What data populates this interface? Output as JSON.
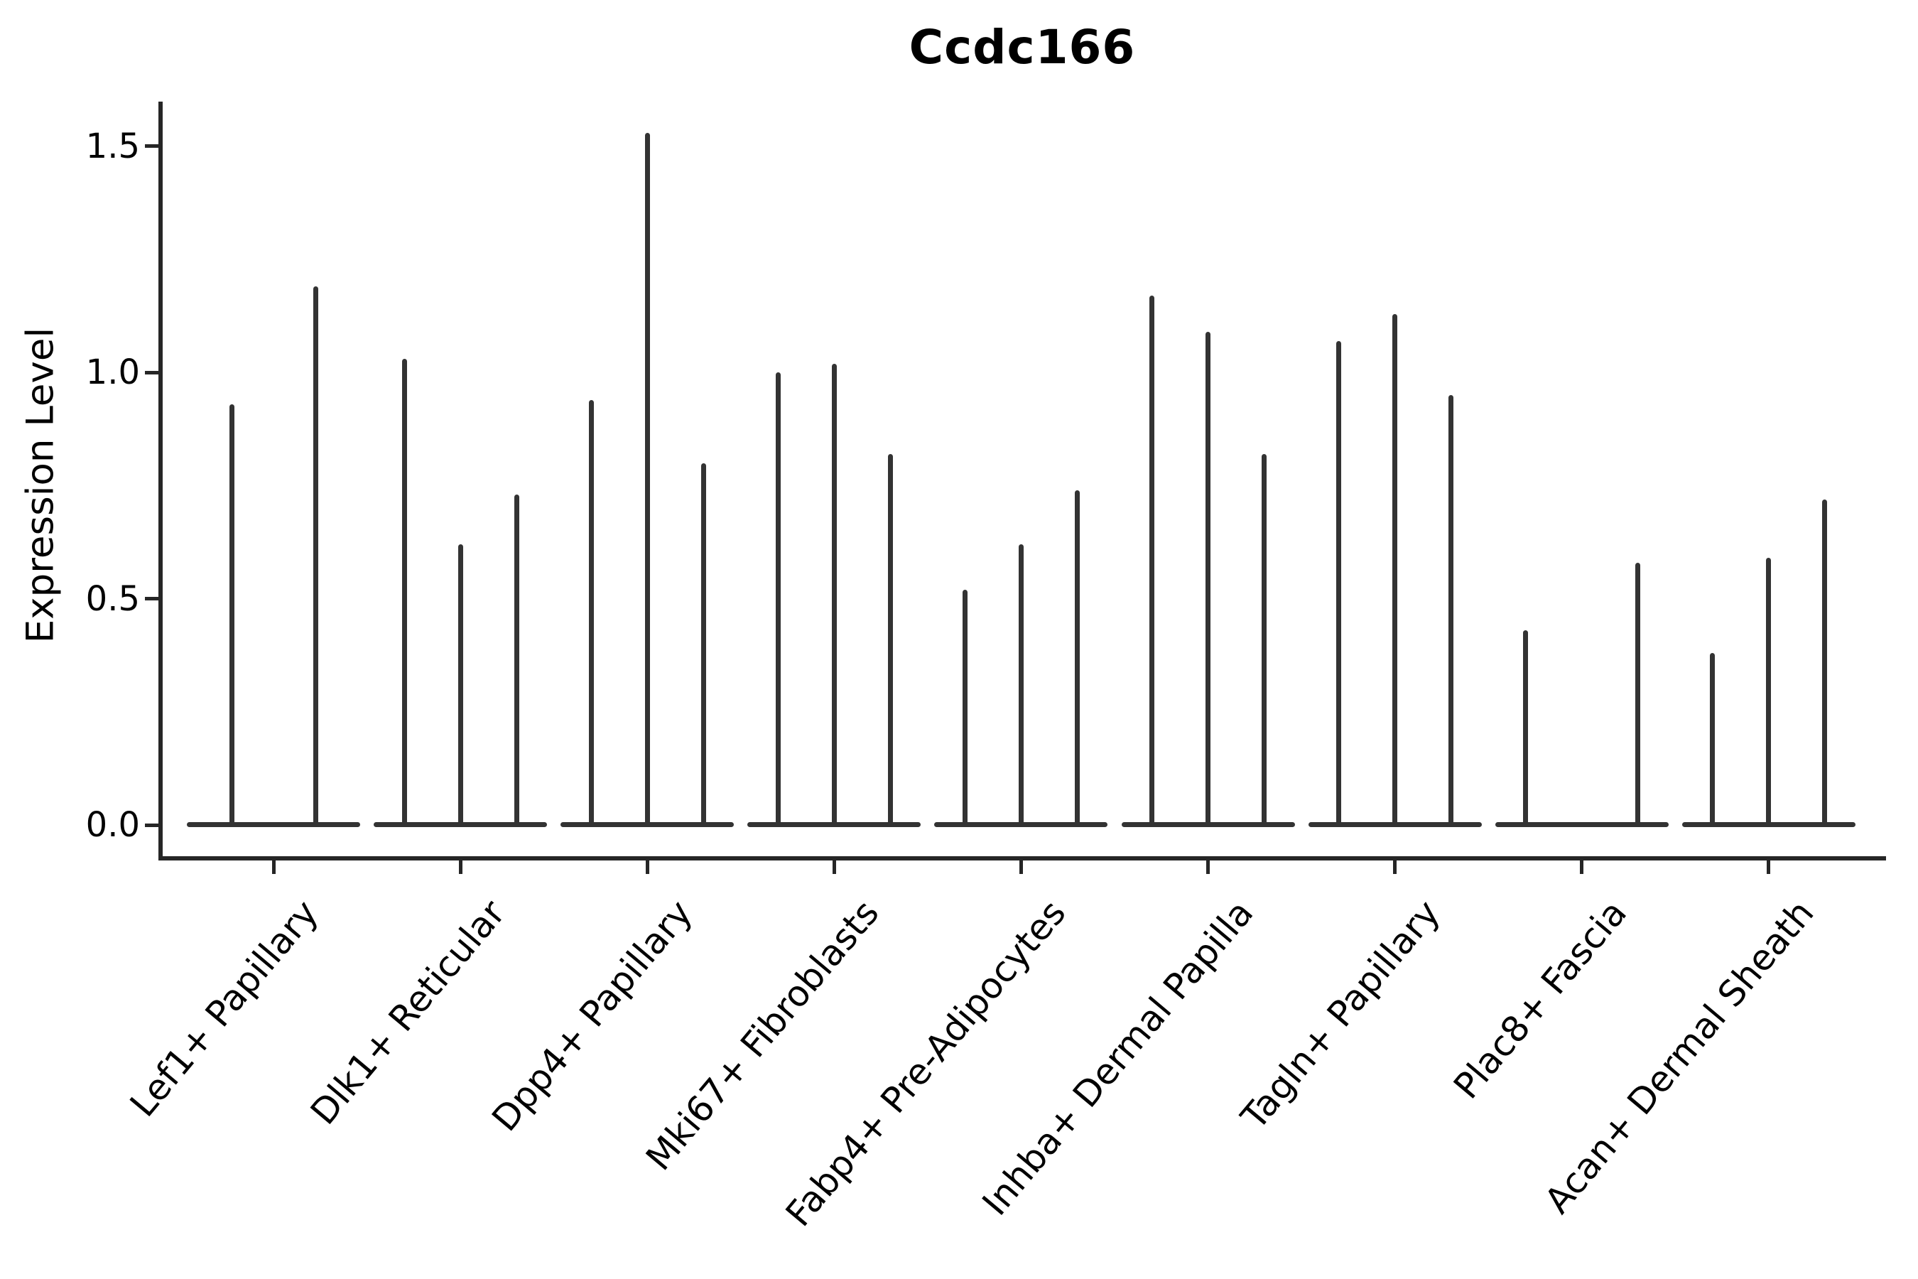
{
  "figure": {
    "background": "#ffffff",
    "ink_color": "#333333",
    "axis_color": "#262626",
    "text_color": "#000000"
  },
  "chart_data": {
    "type": "violin",
    "title": "Ccdc166",
    "xlabel": "",
    "ylabel": "Expression Level",
    "grid": false,
    "legend_position": "none",
    "ylim": [
      -0.07,
      1.6
    ],
    "yticks": {
      "values": [
        0.0,
        0.5,
        1.0,
        1.5
      ],
      "labels": [
        "0.0",
        "0.5",
        "1.0",
        "1.5"
      ]
    },
    "categories": [
      {
        "label": "Lef1+ Papillary",
        "violins": [
          {
            "offset": -59,
            "max": 0.93
          },
          {
            "offset": 59,
            "max": 1.19
          }
        ]
      },
      {
        "label": "Dlk1+ Reticular",
        "violins": [
          {
            "offset": -79,
            "max": 1.03
          },
          {
            "offset": 0,
            "max": 0.62
          },
          {
            "offset": 79,
            "max": 0.73
          }
        ]
      },
      {
        "label": "Dpp4+ Papillary",
        "violins": [
          {
            "offset": -79,
            "max": 0.94
          },
          {
            "offset": 0,
            "max": 1.53
          },
          {
            "offset": 79,
            "max": 0.8
          }
        ]
      },
      {
        "label": "Mki67+ Fibroblasts",
        "violins": [
          {
            "offset": -79,
            "max": 1.0
          },
          {
            "offset": 0,
            "max": 1.02
          },
          {
            "offset": 79,
            "max": 0.82
          }
        ]
      },
      {
        "label": "Fabp4+ Pre-Adipocytes",
        "violins": [
          {
            "offset": -79,
            "max": 0.52
          },
          {
            "offset": 0,
            "max": 0.62
          },
          {
            "offset": 79,
            "max": 0.74
          }
        ]
      },
      {
        "label": "Inhba+ Dermal Papilla",
        "violins": [
          {
            "offset": -79,
            "max": 1.17
          },
          {
            "offset": 0,
            "max": 1.09
          },
          {
            "offset": 79,
            "max": 0.82
          }
        ]
      },
      {
        "label": "Tagln+ Papillary",
        "violins": [
          {
            "offset": -79,
            "max": 1.07
          },
          {
            "offset": 0,
            "max": 1.13
          },
          {
            "offset": 79,
            "max": 0.95
          }
        ]
      },
      {
        "label": "Plac8+ Fascia",
        "violins": [
          {
            "offset": -79,
            "max": 0.43
          },
          {
            "offset": 79,
            "max": 0.58
          }
        ]
      },
      {
        "label": "Acan+ Dermal Sheath",
        "violins": [
          {
            "offset": -79,
            "max": 0.38
          },
          {
            "offset": 0,
            "max": 0.59
          },
          {
            "offset": 79,
            "max": 0.72
          }
        ]
      }
    ]
  }
}
